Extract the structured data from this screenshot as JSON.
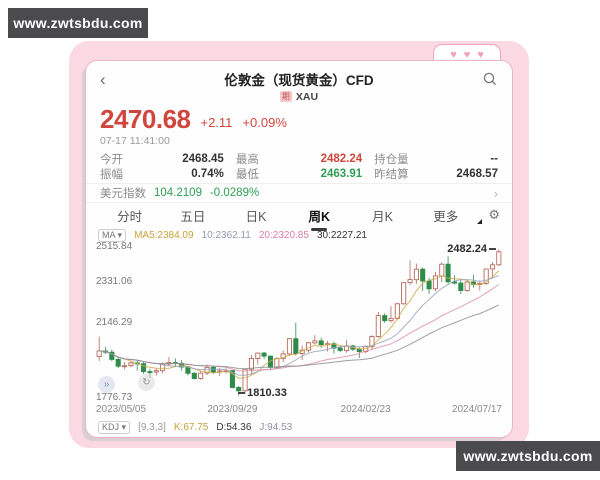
{
  "watermark": {
    "text": "www.zwtsbdu.com"
  },
  "frame": {
    "hearts": [
      "♥",
      "♥",
      "♥"
    ]
  },
  "icons": {
    "back": "‹",
    "dropdown": "▾",
    "chevron_right": "›",
    "gear": "⚙",
    "expand": "»",
    "refresh": "↻"
  },
  "header": {
    "title": "伦敦金（现货黄金）CFD",
    "badge": "期",
    "symbol": "XAU"
  },
  "quote": {
    "price": "2470.68",
    "change": "+2.11",
    "change_pct": "+0.09%",
    "timestamp": "07-17 11:41:00"
  },
  "stats": [
    {
      "label": "今开",
      "value": "2468.45",
      "color": "dark"
    },
    {
      "label": "最高",
      "value": "2482.24",
      "color": "red"
    },
    {
      "label": "持仓量",
      "value": "--",
      "color": "dark"
    },
    {
      "label": "振幅",
      "value": "0.74%",
      "color": "dark"
    },
    {
      "label": "最低",
      "value": "2463.91",
      "color": "green"
    },
    {
      "label": "昨结算",
      "value": "2468.57",
      "color": "dark"
    }
  ],
  "usd_index": {
    "label": "美元指数",
    "value": "104.2109",
    "change": "-0.0289%"
  },
  "tabs": [
    {
      "label": "分时"
    },
    {
      "label": "五日"
    },
    {
      "label": "日K"
    },
    {
      "label": "周K"
    },
    {
      "label": "月K"
    },
    {
      "label": "更多"
    }
  ],
  "ma_row": {
    "chip": "MA",
    "items": [
      {
        "text": "MA5:2384.09",
        "color": "yellow"
      },
      {
        "text": "10:2362.11",
        "color": "bluegray"
      },
      {
        "text": "20:2320.85",
        "color": "pink"
      },
      {
        "text": "30:2227.21",
        "color": "dark"
      }
    ]
  },
  "kdj_row": {
    "chip": "KDJ",
    "params": "[9,3,3]",
    "items": [
      {
        "text": "K:67.75",
        "color": "yellow"
      },
      {
        "text": "D:54.36",
        "color": "dark"
      },
      {
        "text": "J:94.53",
        "color": "gray"
      }
    ]
  },
  "chart_data": {
    "type": "candlestick",
    "title": "伦敦金 现货黄金 周K",
    "ylim": [
      1776.73,
      2515.84
    ],
    "y_ticks": [
      "2515.84",
      "2331.06",
      "2146.29",
      "1776.73"
    ],
    "x_tick_labels": [
      "2023/05/05",
      "2023/09/29",
      "2024/02/23",
      "2024/07/17"
    ],
    "x_tick_indices": [
      0,
      21,
      42,
      63
    ],
    "high_marker": {
      "text": "2482.24",
      "index": 63
    },
    "low_marker": {
      "text": "1810.33",
      "index": 22
    },
    "up_color": "#b5695b",
    "down_color": "#2e8c4a",
    "ma_periods": [
      5,
      10,
      20,
      30
    ],
    "ma_colors": {
      "MA5": "#d2ab4a",
      "MA10": "#9aa4b8",
      "MA20": "#dd8fa9",
      "MA30": "#8b8f94"
    },
    "open": [
      1990,
      2016,
      2010,
      1977,
      1946,
      1948,
      1961,
      1957,
      1921,
      1919,
      1925,
      1955,
      1962,
      1959,
      1942,
      1913,
      1889,
      1914,
      1940,
      1919,
      1924,
      1925,
      1848,
      1833,
      1932,
      1981,
      2006,
      1992,
      1940,
      1981,
      2002,
      2072,
      2004,
      2019,
      2053,
      2062,
      2045,
      2049,
      2029,
      2018,
      2039,
      2024,
      2013,
      2035,
      2082,
      2178,
      2155,
      2165,
      2232,
      2329,
      2343,
      2391,
      2337,
      2301,
      2360,
      2414,
      2333,
      2327,
      2293,
      2332,
      2321,
      2326,
      2392,
      2411
    ],
    "close": [
      2016,
      2010,
      1977,
      1946,
      1948,
      1961,
      1957,
      1921,
      1919,
      1925,
      1955,
      1962,
      1959,
      1942,
      1913,
      1889,
      1914,
      1940,
      1919,
      1924,
      1925,
      1848,
      1833,
      1932,
      1981,
      2006,
      1992,
      1940,
      1981,
      2002,
      2072,
      2004,
      2019,
      2053,
      2062,
      2045,
      2049,
      2029,
      2018,
      2039,
      2024,
      2013,
      2035,
      2082,
      2178,
      2155,
      2165,
      2232,
      2329,
      2343,
      2391,
      2337,
      2301,
      2360,
      2414,
      2333,
      2327,
      2293,
      2332,
      2321,
      2326,
      2392,
      2411,
      2470.68
    ],
    "high": [
      2081,
      2035,
      2023,
      1985,
      1965,
      1970,
      1972,
      1965,
      1934,
      1935,
      1964,
      1988,
      1982,
      1973,
      1948,
      1918,
      1923,
      1953,
      1947,
      1939,
      1937,
      1928,
      1855,
      1935,
      1997,
      2009,
      2011,
      1993,
      1988,
      2018,
      2075,
      2146,
      2040,
      2058,
      2088,
      2077,
      2062,
      2058,
      2037,
      2065,
      2044,
      2032,
      2041,
      2088,
      2195,
      2188,
      2222,
      2236,
      2330,
      2431,
      2417,
      2399,
      2352,
      2378,
      2422,
      2450,
      2364,
      2340,
      2342,
      2366,
      2339,
      2393,
      2424,
      2482.24
    ],
    "low": [
      1969,
      2001,
      1969,
      1938,
      1932,
      1940,
      1925,
      1911,
      1893,
      1903,
      1913,
      1946,
      1942,
      1925,
      1903,
      1885,
      1884,
      1905,
      1911,
      1901,
      1913,
      1844,
      1810.33,
      1823,
      1908,
      1953,
      1978,
      1933,
      1935,
      1965,
      1992,
      1994,
      1973,
      2010,
      2046,
      2030,
      2013,
      2004,
      2010,
      2008,
      2015,
      1984,
      2005,
      2023,
      2076,
      2145,
      2146,
      2157,
      2228,
      2319,
      2324,
      2291,
      2277,
      2289,
      2332,
      2325,
      2321,
      2277,
      2287,
      2306,
      2293,
      2319,
      2349,
      2405
    ]
  }
}
